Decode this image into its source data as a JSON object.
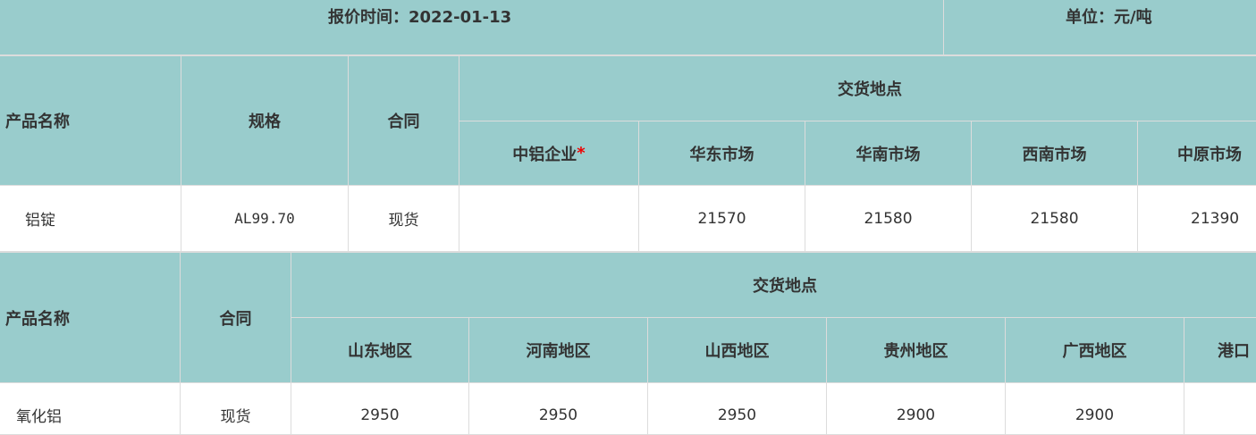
{
  "header": {
    "quote_time": "报价时间：2022-01-13",
    "unit": "单位：元/吨"
  },
  "table1": {
    "col_product": "产品名称",
    "col_spec": "规格",
    "col_contract": "合同",
    "col_delivery": "交货地点",
    "locations": [
      "中铝企业",
      "华东市场",
      "华南市场",
      "西南市场",
      "中原市场"
    ],
    "star": "*",
    "row": {
      "product": "铝锭",
      "spec": "AL99.70",
      "contract": "现货",
      "prices": [
        "",
        "21570",
        "21580",
        "21580",
        "21390"
      ]
    }
  },
  "table2": {
    "col_product": "产品名称",
    "col_contract": "合同",
    "col_delivery": "交货地点",
    "locations": [
      "山东地区",
      "河南地区",
      "山西地区",
      "贵州地区",
      "广西地区",
      "港口"
    ],
    "row": {
      "product": "氧化铝",
      "contract": "现货",
      "prices": [
        "2950",
        "2950",
        "2950",
        "2900",
        "2900",
        ""
      ]
    }
  }
}
